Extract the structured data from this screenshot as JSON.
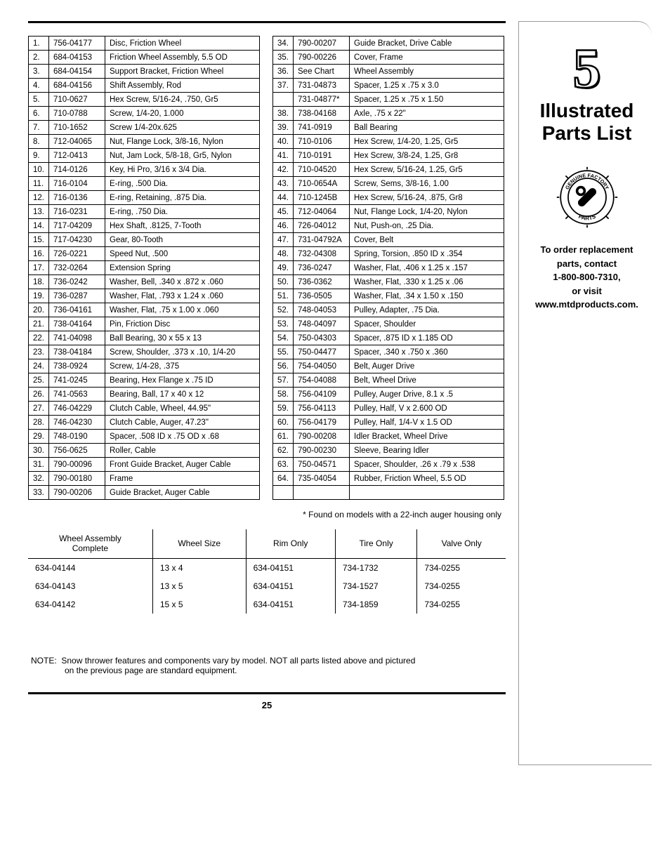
{
  "page_number": "25",
  "section_number": "5",
  "section_title_line1": "Illustrated",
  "section_title_line2": "Parts List",
  "badge_text": "GENUINE FACTORY PARTS",
  "order_line1": "To order replacement",
  "order_line2": "parts, contact",
  "order_line3": "1-800-800-7310,",
  "order_line4": "or visit",
  "order_line5": "www.mtdproducts.com.",
  "footnote": "* Found on models with a 22-inch auger housing only",
  "note_label": "NOTE:",
  "note_line1": "Snow thrower features and components vary by model. NOT all parts listed above and pictured",
  "note_line2": "on the previous page are standard equipment.",
  "table1": [
    {
      "n": "1.",
      "pn": "756-04177",
      "d": "Disc, Friction Wheel"
    },
    {
      "n": "2.",
      "pn": "684-04153",
      "d": "Friction Wheel Assembly, 5.5 OD"
    },
    {
      "n": "3.",
      "pn": "684-04154",
      "d": "Support Bracket, Friction Wheel"
    },
    {
      "n": "4.",
      "pn": "684-04156",
      "d": "Shift Assembly, Rod"
    },
    {
      "n": "5.",
      "pn": "710-0627",
      "d": "Hex Screw, 5/16-24, .750, Gr5"
    },
    {
      "n": "6.",
      "pn": "710-0788",
      "d": "Screw, 1/4-20, 1.000"
    },
    {
      "n": "7.",
      "pn": "710-1652",
      "d": "Screw 1/4-20x.625"
    },
    {
      "n": "8.",
      "pn": "712-04065",
      "d": "Nut, Flange Lock, 3/8-16, Nylon"
    },
    {
      "n": "9.",
      "pn": "712-0413",
      "d": "Nut, Jam Lock, 5/8-18, Gr5, Nylon"
    },
    {
      "n": "10.",
      "pn": "714-0126",
      "d": "Key, Hi Pro, 3/16 x 3/4 Dia."
    },
    {
      "n": "11.",
      "pn": "716-0104",
      "d": "E-ring, .500 Dia."
    },
    {
      "n": "12.",
      "pn": "716-0136",
      "d": "E-ring, Retaining,  .875 Dia."
    },
    {
      "n": "13.",
      "pn": "716-0231",
      "d": "E-ring, .750 Dia."
    },
    {
      "n": "14.",
      "pn": "717-04209",
      "d": "Hex Shaft, .8125, 7-Tooth"
    },
    {
      "n": "15.",
      "pn": "717-04230",
      "d": "Gear, 80-Tooth"
    },
    {
      "n": "16.",
      "pn": "726-0221",
      "d": "Speed Nut, .500"
    },
    {
      "n": "17.",
      "pn": "732-0264",
      "d": "Extension Spring"
    },
    {
      "n": "18.",
      "pn": "736-0242",
      "d": "Washer, Bell, .340 x .872 x .060"
    },
    {
      "n": "19.",
      "pn": "736-0287",
      "d": "Washer, Flat, .793 x 1.24 x .060"
    },
    {
      "n": "20.",
      "pn": "736-04161",
      "d": "Washer, Flat, .75 x 1.00 x .060"
    },
    {
      "n": "21.",
      "pn": "738-04164",
      "d": "Pin, Friction Disc"
    },
    {
      "n": "22.",
      "pn": "741-04098",
      "d": "Ball Bearing, 30 x 55 x 13"
    },
    {
      "n": "23.",
      "pn": "738-04184",
      "d": "Screw, Shoulder, .373 x .10, 1/4-20"
    },
    {
      "n": "24.",
      "pn": "738-0924",
      "d": "Screw, 1/4-28, .375"
    },
    {
      "n": "25.",
      "pn": "741-0245",
      "d": "Bearing, Hex Flange x .75 ID"
    },
    {
      "n": "26.",
      "pn": "741-0563",
      "d": "Bearing, Ball, 17 x 40 x 12"
    },
    {
      "n": "27.",
      "pn": "746-04229",
      "d": "Clutch Cable, Wheel, 44.95\""
    },
    {
      "n": "28.",
      "pn": "746-04230",
      "d": "Clutch Cable, Auger, 47.23\""
    },
    {
      "n": "29.",
      "pn": "748-0190",
      "d": "Spacer, .508 ID x .75 OD x .68"
    },
    {
      "n": "30.",
      "pn": "756-0625",
      "d": "Roller, Cable"
    },
    {
      "n": "31.",
      "pn": "790-00096",
      "d": "Front Guide Bracket, Auger Cable"
    },
    {
      "n": "32.",
      "pn": "790-00180",
      "d": "Frame"
    },
    {
      "n": "33.",
      "pn": "790-00206",
      "d": "Guide Bracket, Auger Cable"
    }
  ],
  "table2": [
    {
      "n": "34.",
      "pn": "790-00207",
      "d": "Guide Bracket, Drive Cable"
    },
    {
      "n": "35.",
      "pn": "790-00226",
      "d": "Cover, Frame"
    },
    {
      "n": "36.",
      "pn": "See Chart",
      "d": "Wheel Assembly"
    },
    {
      "n": "37.",
      "pn": "731-04873",
      "d": "Spacer, 1.25 x .75 x 3.0"
    },
    {
      "n": "",
      "pn": "731-04877*",
      "d": "Spacer, 1.25 x .75 x 1.50"
    },
    {
      "n": "38.",
      "pn": "738-04168",
      "d": "Axle, .75 x 22\""
    },
    {
      "n": "39.",
      "pn": "741-0919",
      "d": "Ball Bearing"
    },
    {
      "n": "40.",
      "pn": "710-0106",
      "d": "Hex Screw, 1/4-20, 1.25, Gr5"
    },
    {
      "n": "41.",
      "pn": "710-0191",
      "d": "Hex Screw, 3/8-24, 1.25, Gr8"
    },
    {
      "n": "42.",
      "pn": "710-04520",
      "d": "Hex Screw, 5/16-24, 1.25, Gr5"
    },
    {
      "n": "43.",
      "pn": "710-0654A",
      "d": "Screw, Sems, 3/8-16, 1.00"
    },
    {
      "n": "44.",
      "pn": "710-1245B",
      "d": "Hex Screw, 5/16-24, .875, Gr8"
    },
    {
      "n": "45.",
      "pn": "712-04064",
      "d": "Nut, Flange Lock, 1/4-20, Nylon"
    },
    {
      "n": "46.",
      "pn": "726-04012",
      "d": "Nut, Push-on, .25 Dia."
    },
    {
      "n": "47.",
      "pn": "731-04792A",
      "d": "Cover, Belt"
    },
    {
      "n": "48.",
      "pn": "732-04308",
      "d": "Spring, Torsion, .850 ID x .354"
    },
    {
      "n": "49.",
      "pn": "736-0247",
      "d": "Washer, Flat, .406 x 1.25 x .157"
    },
    {
      "n": "50.",
      "pn": "736-0362",
      "d": "Washer, Flat, .330 x 1.25 x .06"
    },
    {
      "n": "51.",
      "pn": "736-0505",
      "d": "Washer, Flat, .34 x 1.50 x .150"
    },
    {
      "n": "52.",
      "pn": "748-04053",
      "d": "Pulley, Adapter, .75 Dia."
    },
    {
      "n": "53.",
      "pn": "748-04097",
      "d": "Spacer, Shoulder"
    },
    {
      "n": "54.",
      "pn": "750-04303",
      "d": "Spacer, .875 ID x 1.185 OD"
    },
    {
      "n": "55.",
      "pn": "750-04477",
      "d": "Spacer, .340 x .750 x .360"
    },
    {
      "n": "56.",
      "pn": "754-04050",
      "d": "Belt, Auger Drive"
    },
    {
      "n": "57.",
      "pn": "754-04088",
      "d": "Belt, Wheel Drive"
    },
    {
      "n": "58.",
      "pn": "756-04109",
      "d": "Pulley, Auger Drive, 8.1 x .5"
    },
    {
      "n": "59.",
      "pn": "756-04113",
      "d": "Pulley, Half, V x 2.600 OD"
    },
    {
      "n": "60.",
      "pn": "756-04179",
      "d": "Pulley, Half, 1/4-V x 1.5 OD"
    },
    {
      "n": "61.",
      "pn": "790-00208",
      "d": "Idler Bracket, Wheel Drive"
    },
    {
      "n": "62.",
      "pn": "790-00230",
      "d": "Sleeve, Bearing Idler"
    },
    {
      "n": "63.",
      "pn": "750-04571",
      "d": "Spacer, Shoulder, .26 x .79 x .538"
    },
    {
      "n": "64.",
      "pn": "735-04054",
      "d": "Rubber, Friction Wheel, 5.5 OD"
    },
    {
      "n": "",
      "pn": "",
      "d": ""
    }
  ],
  "wheel_headers": {
    "assy1": "Wheel Assembly",
    "assy2": "Complete",
    "size": "Wheel Size",
    "rim": "Rim Only",
    "tire": "Tire Only",
    "valve": "Valve Only"
  },
  "wheel_rows": [
    {
      "assy": "634-04144",
      "size": "13 x 4",
      "rim": "634-04151",
      "tire": "734-1732",
      "valve": "734-0255"
    },
    {
      "assy": "634-04143",
      "size": "13 x 5",
      "rim": "634-04151",
      "tire": "734-1527",
      "valve": "734-0255"
    },
    {
      "assy": "634-04142",
      "size": "15 x 5",
      "rim": "634-04151",
      "tire": "734-1859",
      "valve": "734-0255"
    }
  ]
}
